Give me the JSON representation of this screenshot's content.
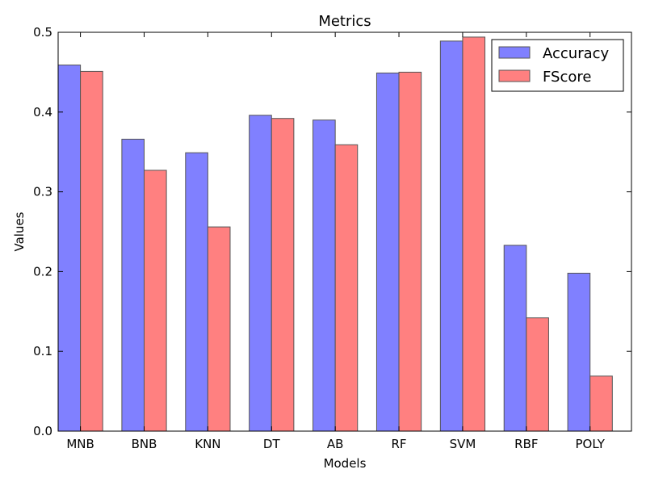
{
  "chart_data": {
    "type": "bar",
    "title": "Metrics",
    "xlabel": "Models",
    "ylabel": "Values",
    "categories": [
      "MNB",
      "BNB",
      "KNN",
      "DT",
      "AB",
      "RF",
      "SVM",
      "RBF",
      "POLY"
    ],
    "series": [
      {
        "name": "Accuracy",
        "color": "#8080ff",
        "values": [
          0.459,
          0.366,
          0.349,
          0.396,
          0.39,
          0.449,
          0.489,
          0.233,
          0.198
        ]
      },
      {
        "name": "FScore",
        "color": "#ff8080",
        "values": [
          0.451,
          0.327,
          0.256,
          0.392,
          0.359,
          0.45,
          0.494,
          0.142,
          0.069
        ]
      }
    ],
    "ylim": [
      0,
      0.5
    ],
    "yticks": [
      "0.0",
      "0.1",
      "0.2",
      "0.3",
      "0.4",
      "0.5"
    ],
    "legend_position": "top-right",
    "grid": false
  }
}
